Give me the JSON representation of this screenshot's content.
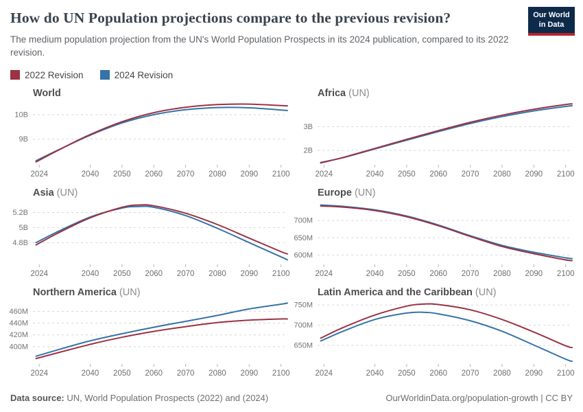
{
  "header": {
    "title": "How do UN Population projections compare to the previous revision?",
    "subtitle": "The medium population projection from the UN's World Population Prospects in its 2024 publication, compared to its 2022 revision.",
    "logo": {
      "line1": "Our World",
      "line2": "in Data",
      "bg_color": "#0e2a4a",
      "bar_color": "#b4262d"
    }
  },
  "legend": {
    "items": [
      {
        "label": "2022 Revision",
        "color": "#9a3343"
      },
      {
        "label": "2024 Revision",
        "color": "#3573a8"
      }
    ]
  },
  "footer": {
    "source_label": "Data source:",
    "source_text": " UN, World Population Prospects (2022) and (2024)",
    "right_text": "OurWorldinData.org/population-growth | CC BY"
  },
  "style_colors": {
    "gridline": "#d6d6d6",
    "tick": "#b3b3b3",
    "axis_label": "#6e6e6e",
    "y_label": "#737373"
  },
  "chart_data": [
    {
      "type": "line",
      "title": "World",
      "title_suffix": "",
      "x_domain": [
        2022,
        2102
      ],
      "x_ticks": [
        2024,
        2040,
        2050,
        2060,
        2070,
        2080,
        2090,
        2100
      ],
      "ylim": [
        7.98,
        10.56
      ],
      "gridlines": [
        {
          "value": 9,
          "label": "9B"
        },
        {
          "value": 10,
          "label": "10B"
        }
      ],
      "x": [
        2023,
        2030,
        2040,
        2050,
        2060,
        2070,
        2080,
        2090,
        2100,
        2102
      ],
      "series": [
        {
          "name": "2022 Revision",
          "color": "#9a3343",
          "values": [
            8.07,
            8.55,
            9.19,
            9.71,
            10.08,
            10.3,
            10.41,
            10.43,
            10.37,
            10.36
          ]
        },
        {
          "name": "2024 Revision",
          "color": "#3573a8",
          "values": [
            8.12,
            8.56,
            9.16,
            9.66,
            10.0,
            10.2,
            10.29,
            10.28,
            10.19,
            10.17
          ]
        }
      ]
    },
    {
      "type": "line",
      "title": "Africa",
      "title_suffix": "(UN)",
      "x_domain": [
        2022,
        2102
      ],
      "x_ticks": [
        2024,
        2040,
        2050,
        2060,
        2070,
        2080,
        2090,
        2100
      ],
      "ylim": [
        1.42,
        4.08
      ],
      "gridlines": [
        {
          "value": 2,
          "label": "2B"
        },
        {
          "value": 3,
          "label": "3B"
        }
      ],
      "x": [
        2023,
        2030,
        2040,
        2050,
        2060,
        2070,
        2080,
        2090,
        2100,
        2102
      ],
      "series": [
        {
          "name": "2022 Revision",
          "color": "#9a3343",
          "values": [
            1.47,
            1.7,
            2.08,
            2.46,
            2.83,
            3.18,
            3.48,
            3.73,
            3.93,
            3.96
          ]
        },
        {
          "name": "2024 Revision",
          "color": "#3573a8",
          "values": [
            1.49,
            1.69,
            2.06,
            2.43,
            2.79,
            3.13,
            3.42,
            3.66,
            3.85,
            3.88
          ]
        }
      ]
    },
    {
      "type": "line",
      "title": "Asia",
      "title_suffix": "(UN)",
      "x_domain": [
        2022,
        2102
      ],
      "x_ticks": [
        2024,
        2040,
        2050,
        2060,
        2070,
        2080,
        2090,
        2100
      ],
      "ylim": [
        4.52,
        5.36
      ],
      "gridlines": [
        {
          "value": 4.8,
          "label": "4.8B"
        },
        {
          "value": 5.0,
          "label": "5B"
        },
        {
          "value": 5.2,
          "label": "5.2B"
        }
      ],
      "x": [
        2023,
        2030,
        2040,
        2050,
        2055,
        2060,
        2070,
        2080,
        2090,
        2100,
        2102
      ],
      "series": [
        {
          "name": "2022 Revision",
          "color": "#9a3343",
          "values": [
            4.77,
            4.93,
            5.13,
            5.27,
            5.3,
            5.29,
            5.19,
            5.04,
            4.86,
            4.68,
            4.65
          ]
        },
        {
          "name": "2024 Revision",
          "color": "#3573a8",
          "values": [
            4.8,
            4.95,
            5.14,
            5.26,
            5.28,
            5.27,
            5.16,
            4.99,
            4.8,
            4.61,
            4.57
          ]
        }
      ]
    },
    {
      "type": "line",
      "title": "Europe",
      "title_suffix": "(UN)",
      "x_domain": [
        2022,
        2102
      ],
      "x_ticks": [
        2024,
        2040,
        2050,
        2060,
        2070,
        2080,
        2090,
        2100
      ],
      "ylim": [
        575,
        758
      ],
      "gridlines": [
        {
          "value": 600,
          "label": "600M"
        },
        {
          "value": 650,
          "label": "650M"
        },
        {
          "value": 700,
          "label": "700M"
        }
      ],
      "x": [
        2023,
        2030,
        2040,
        2050,
        2060,
        2070,
        2080,
        2090,
        2100,
        2102
      ],
      "series": [
        {
          "name": "2022 Revision",
          "color": "#9a3343",
          "values": [
            742,
            739,
            729,
            711,
            685,
            654,
            625,
            604,
            586,
            584
          ]
        },
        {
          "name": "2024 Revision",
          "color": "#3573a8",
          "values": [
            745,
            741,
            731,
            713,
            687,
            656,
            628,
            608,
            592,
            590
          ]
        }
      ]
    },
    {
      "type": "line",
      "title": "Northern America",
      "title_suffix": "(UN)",
      "x_domain": [
        2022,
        2102
      ],
      "x_ticks": [
        2024,
        2040,
        2050,
        2060,
        2070,
        2080,
        2090,
        2100
      ],
      "ylim": [
        372,
        479
      ],
      "gridlines": [
        {
          "value": 400,
          "label": "400M"
        },
        {
          "value": 420,
          "label": "420M"
        },
        {
          "value": 440,
          "label": "440M"
        },
        {
          "value": 460,
          "label": "460M"
        }
      ],
      "x": [
        2023,
        2030,
        2040,
        2050,
        2060,
        2070,
        2080,
        2090,
        2100,
        2102
      ],
      "series": [
        {
          "name": "2022 Revision",
          "color": "#9a3343",
          "values": [
            380,
            390,
            404,
            416,
            426,
            434,
            441,
            445,
            447,
            447
          ]
        },
        {
          "name": "2024 Revision",
          "color": "#3573a8",
          "values": [
            384,
            395,
            410,
            422,
            433,
            443,
            453,
            464,
            472,
            474
          ]
        }
      ]
    },
    {
      "type": "line",
      "title": "Latin America and the Caribbean",
      "title_suffix": "(UN)",
      "x_domain": [
        2022,
        2102
      ],
      "x_ticks": [
        2024,
        2040,
        2050,
        2060,
        2070,
        2080,
        2090,
        2100
      ],
      "ylim": [
        606,
        762
      ],
      "gridlines": [
        {
          "value": 650,
          "label": "650M"
        },
        {
          "value": 700,
          "label": "700M"
        },
        {
          "value": 750,
          "label": "750M"
        }
      ],
      "x": [
        2023,
        2030,
        2040,
        2050,
        2055,
        2060,
        2070,
        2080,
        2090,
        2100,
        2102
      ],
      "series": [
        {
          "name": "2022 Revision",
          "color": "#9a3343",
          "values": [
            668,
            694,
            725,
            747,
            752,
            751,
            738,
            714,
            683,
            649,
            645
          ]
        },
        {
          "name": "2024 Revision",
          "color": "#3573a8",
          "values": [
            661,
            685,
            714,
            730,
            732,
            728,
            711,
            685,
            651,
            616,
            611
          ]
        }
      ]
    }
  ]
}
